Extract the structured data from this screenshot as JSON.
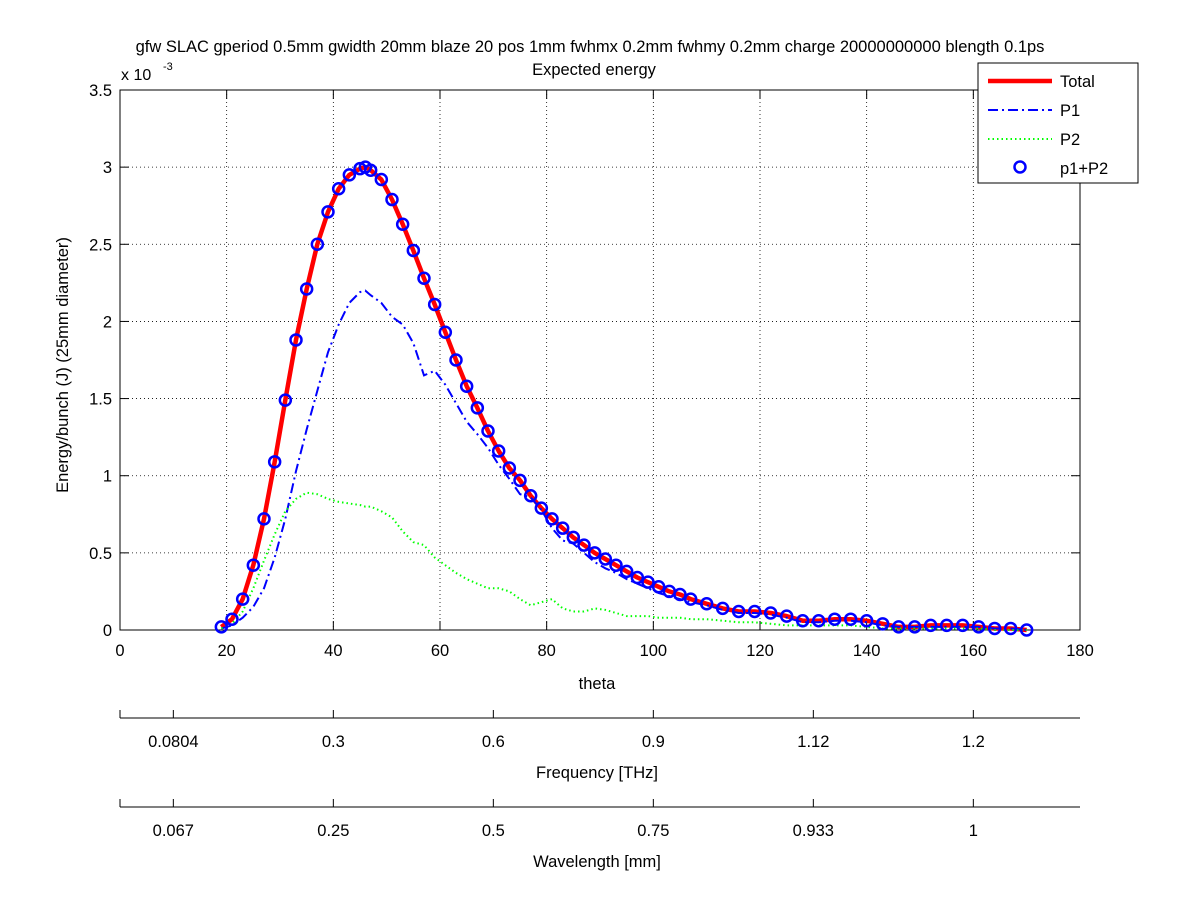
{
  "title_line1": "gfw SLAC gperiod 0.5mm gwidth 20mm blaze 20 pos 1mm fwhmx 0.2mm fwhmy 0.2mm charge 20000000000 blength 0.1ps",
  "title_line2": "Expected energy",
  "exponent_base": "x 10",
  "exponent_power": "-3",
  "secondary_axes": [
    {
      "ticks": [
        "0.0804",
        "0.3",
        "0.6",
        "0.9",
        "1.12",
        "1.2"
      ],
      "label": "Frequency [THz]"
    },
    {
      "ticks": [
        "0.067",
        "0.25",
        "0.5",
        "0.75",
        "0.933",
        "1"
      ],
      "label": "Wavelength [mm]"
    }
  ],
  "colors": {
    "total": "#ff0000",
    "p1": "#0000ff",
    "p2": "#00ff00",
    "p1p2": "#0000ff"
  },
  "chart_data": {
    "type": "line",
    "title": "Expected energy",
    "xlabel": "theta",
    "ylabel": "Energy/bunch (J)  (25mm diameter)",
    "xlim": [
      0,
      180
    ],
    "ylim": [
      0,
      0.0035
    ],
    "y_scale_note": "x 10^-3",
    "xticks": [
      0,
      20,
      40,
      60,
      80,
      100,
      120,
      140,
      160,
      180
    ],
    "yticks": [
      0,
      0.0005,
      0.001,
      0.0015,
      0.002,
      0.0025,
      0.003,
      0.0035
    ],
    "ytick_labels": [
      "0",
      "0.5",
      "1",
      "1.5",
      "2",
      "2.5",
      "3",
      "3.5"
    ],
    "grid": true,
    "legend_position": "top-right",
    "series": [
      {
        "name": "Total",
        "style": "solid",
        "color": "#ff0000",
        "x": [
          19,
          21,
          23,
          25,
          27,
          29,
          31,
          33,
          35,
          37,
          39,
          41,
          43,
          45,
          46,
          47,
          49,
          51,
          53,
          55,
          57,
          59,
          61,
          63,
          65,
          67,
          69,
          71,
          73,
          75,
          77,
          79,
          81,
          83,
          85,
          87,
          89,
          91,
          93,
          95,
          97,
          99,
          101,
          103,
          105,
          107,
          110,
          113,
          116,
          119,
          122,
          125,
          128,
          131,
          134,
          137,
          140,
          143,
          146,
          149,
          152,
          155,
          158,
          161,
          164,
          167,
          170
        ],
        "y": [
          2e-05,
          7e-05,
          0.0002,
          0.00042,
          0.00072,
          0.00109,
          0.00149,
          0.00188,
          0.00221,
          0.0025,
          0.00271,
          0.00286,
          0.00295,
          0.00299,
          0.003,
          0.00298,
          0.00292,
          0.00279,
          0.00263,
          0.00246,
          0.00228,
          0.00211,
          0.00193,
          0.00175,
          0.00158,
          0.00144,
          0.00129,
          0.00116,
          0.00105,
          0.00097,
          0.00087,
          0.00079,
          0.00072,
          0.00066,
          0.0006,
          0.00055,
          0.0005,
          0.00046,
          0.00042,
          0.00038,
          0.00034,
          0.00031,
          0.00028,
          0.00025,
          0.00023,
          0.0002,
          0.00017,
          0.00014,
          0.00012,
          0.00012,
          0.00011,
          9e-05,
          6e-05,
          6e-05,
          7e-05,
          7e-05,
          6e-05,
          4e-05,
          2e-05,
          2e-05,
          3e-05,
          3e-05,
          3e-05,
          2e-05,
          1e-05,
          1e-05,
          0.0
        ]
      },
      {
        "name": "P1",
        "style": "dashdot",
        "color": "#0000ff",
        "x": [
          19,
          21,
          23,
          25,
          27,
          29,
          31,
          33,
          35,
          37,
          39,
          41,
          43,
          45,
          46,
          47,
          49,
          51,
          53,
          55,
          57,
          59,
          61,
          63,
          65,
          67,
          69,
          71,
          73,
          75,
          77,
          79,
          81,
          83,
          85,
          87,
          89,
          91,
          93,
          95,
          97,
          99,
          101,
          103,
          105,
          107,
          110,
          113,
          116,
          119,
          122,
          125,
          128,
          131,
          134,
          137,
          140,
          143,
          146,
          149,
          152,
          155,
          158,
          161,
          164,
          167,
          170
        ],
        "y": [
          1e-05,
          3e-05,
          8e-05,
          0.00015,
          0.00027,
          0.00047,
          0.00072,
          0.00103,
          0.0013,
          0.00155,
          0.0018,
          0.00198,
          0.00212,
          0.00219,
          0.0022,
          0.00217,
          0.00212,
          0.00203,
          0.00198,
          0.00186,
          0.00165,
          0.00168,
          0.00159,
          0.00147,
          0.00135,
          0.00127,
          0.00118,
          0.00107,
          0.00098,
          0.00088,
          0.00086,
          0.00078,
          0.00066,
          0.00058,
          0.00056,
          0.0005,
          0.00044,
          0.0004,
          0.00037,
          0.00033,
          0.0003,
          0.00027,
          0.00024,
          0.00022,
          0.0002,
          0.00018,
          0.00016,
          0.00013,
          0.00011,
          0.00011,
          0.0001,
          8e-05,
          5e-05,
          5e-05,
          6e-05,
          6e-05,
          5e-05,
          3e-05,
          2e-05,
          2e-05,
          2e-05,
          2e-05,
          2e-05,
          2e-05,
          1e-05,
          1e-05,
          0.0
        ]
      },
      {
        "name": "P2",
        "style": "dotted",
        "color": "#00ff00",
        "x": [
          19,
          21,
          23,
          25,
          27,
          29,
          31,
          33,
          35,
          37,
          39,
          41,
          43,
          45,
          46,
          47,
          49,
          51,
          53,
          55,
          57,
          59,
          61,
          63,
          65,
          67,
          69,
          71,
          73,
          75,
          77,
          79,
          81,
          83,
          85,
          87,
          89,
          91,
          93,
          95,
          97,
          99,
          101,
          103,
          105,
          107,
          110,
          113,
          116,
          119,
          122,
          125,
          128,
          131,
          134,
          137,
          140,
          143,
          146,
          149,
          152,
          155,
          158,
          161,
          164,
          167,
          170
        ],
        "y": [
          1e-05,
          4e-05,
          0.00012,
          0.00027,
          0.00045,
          0.00062,
          0.00077,
          0.00085,
          0.00089,
          0.00088,
          0.00085,
          0.00083,
          0.00082,
          0.00081,
          0.0008,
          0.0008,
          0.00077,
          0.00073,
          0.00064,
          0.00057,
          0.00055,
          0.00047,
          0.00042,
          0.00037,
          0.00033,
          0.0003,
          0.00027,
          0.00027,
          0.00025,
          0.0002,
          0.00016,
          0.00018,
          0.0002,
          0.00014,
          0.00012,
          0.00012,
          0.00014,
          0.00013,
          0.00011,
          9e-05,
          9e-05,
          9e-05,
          8e-05,
          8e-05,
          8e-05,
          7e-05,
          7e-05,
          6e-05,
          5e-05,
          5e-05,
          4e-05,
          3e-05,
          3e-05,
          3e-05,
          3e-05,
          3e-05,
          2e-05,
          1e-05,
          1e-05,
          1e-05,
          1e-05,
          1e-05,
          1e-05,
          1e-05,
          0.0,
          0.0,
          0.0
        ]
      },
      {
        "name": "p1+P2",
        "style": "circles",
        "color": "#0000ff",
        "x": [
          19,
          21,
          23,
          25,
          27,
          29,
          31,
          33,
          35,
          37,
          39,
          41,
          43,
          45,
          46,
          47,
          49,
          51,
          53,
          55,
          57,
          59,
          61,
          63,
          65,
          67,
          69,
          71,
          73,
          75,
          77,
          79,
          81,
          83,
          85,
          87,
          89,
          91,
          93,
          95,
          97,
          99,
          101,
          103,
          105,
          107,
          110,
          113,
          116,
          119,
          122,
          125,
          128,
          131,
          134,
          137,
          140,
          143,
          146,
          149,
          152,
          155,
          158,
          161,
          164,
          167,
          170
        ],
        "y": [
          2e-05,
          7e-05,
          0.0002,
          0.00042,
          0.00072,
          0.00109,
          0.00149,
          0.00188,
          0.00221,
          0.0025,
          0.00271,
          0.00286,
          0.00295,
          0.00299,
          0.003,
          0.00298,
          0.00292,
          0.00279,
          0.00263,
          0.00246,
          0.00228,
          0.00211,
          0.00193,
          0.00175,
          0.00158,
          0.00144,
          0.00129,
          0.00116,
          0.00105,
          0.00097,
          0.00087,
          0.00079,
          0.00072,
          0.00066,
          0.0006,
          0.00055,
          0.0005,
          0.00046,
          0.00042,
          0.00038,
          0.00034,
          0.00031,
          0.00028,
          0.00025,
          0.00023,
          0.0002,
          0.00017,
          0.00014,
          0.00012,
          0.00012,
          0.00011,
          9e-05,
          6e-05,
          6e-05,
          7e-05,
          7e-05,
          6e-05,
          4e-05,
          2e-05,
          2e-05,
          3e-05,
          3e-05,
          3e-05,
          2e-05,
          1e-05,
          1e-05,
          0.0
        ]
      }
    ]
  }
}
